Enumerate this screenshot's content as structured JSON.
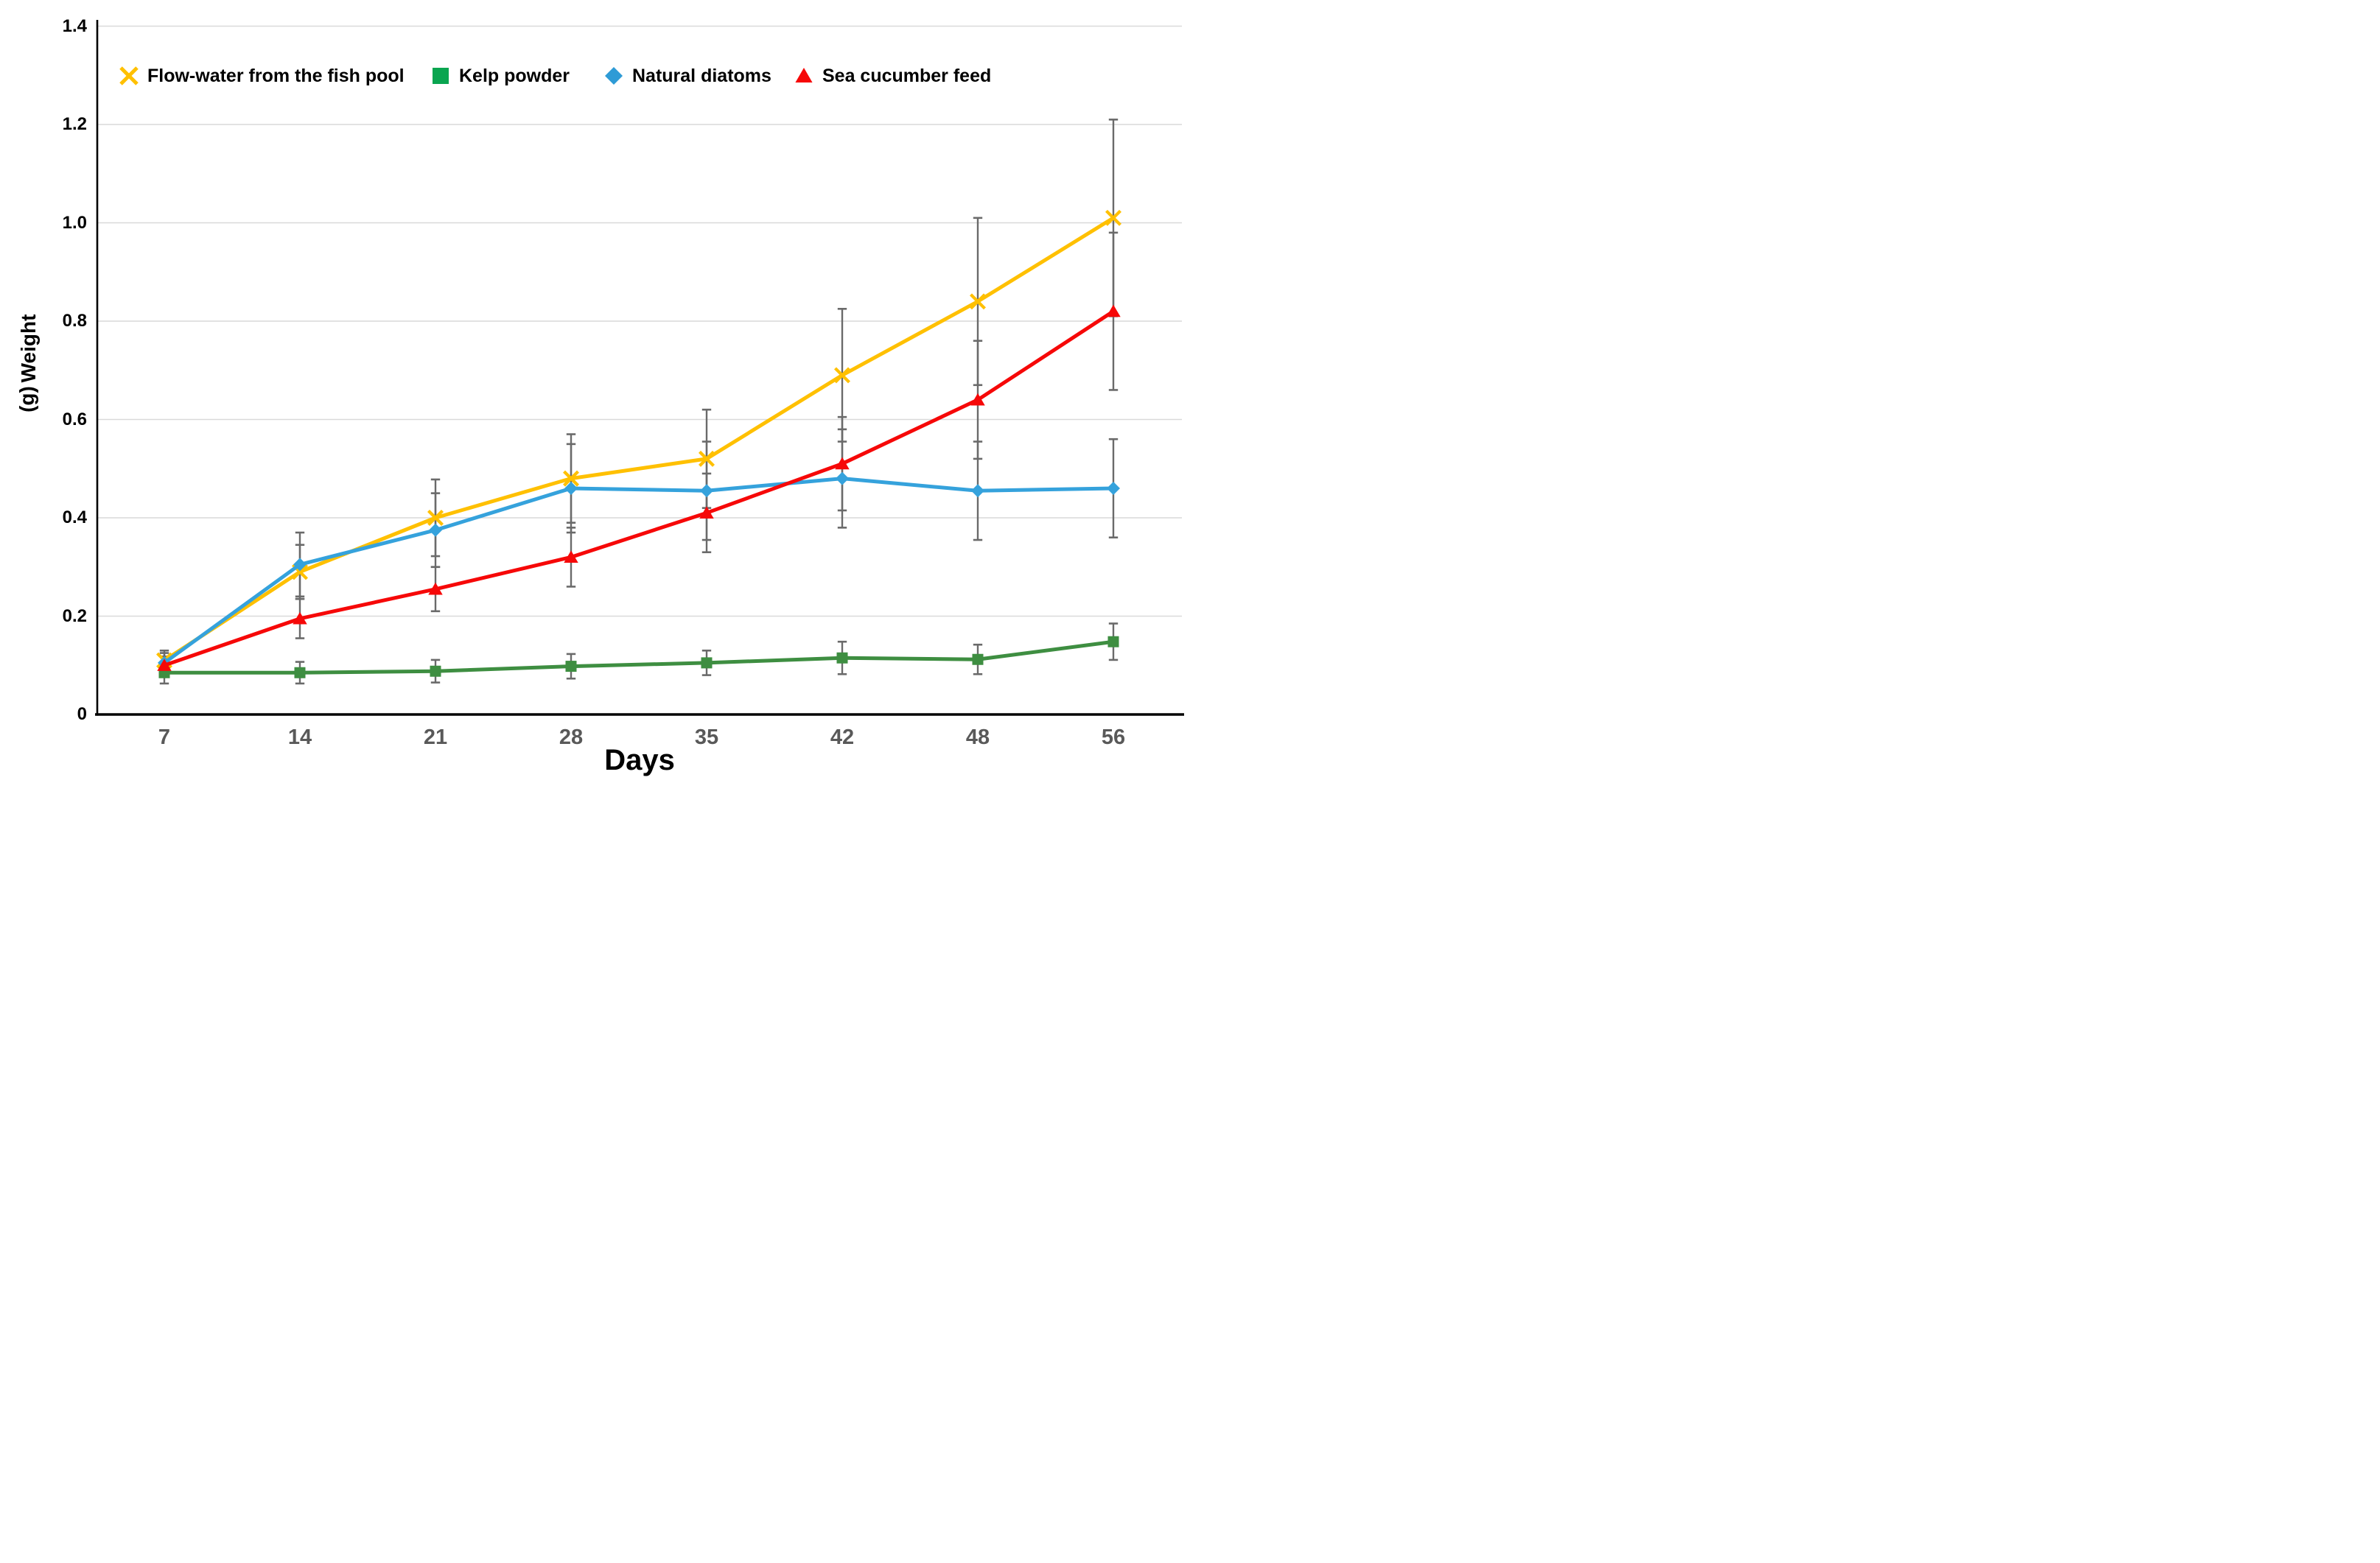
{
  "chart_data": {
    "type": "line",
    "title": "",
    "xlabel": "Days",
    "ylabel": "Weight (g)",
    "ylabel_line1": "Weight",
    "ylabel_line2": "(g)",
    "categories": [
      "7",
      "14",
      "21",
      "28",
      "35",
      "42",
      "48",
      "56"
    ],
    "yticks": [
      "0",
      "0.2",
      "0.4",
      "0.6",
      "0.8",
      "1.0",
      "1.2",
      "1.4"
    ],
    "ytick_values": [
      0,
      0.2,
      0.4,
      0.6,
      0.8,
      1.0,
      1.2,
      1.4
    ],
    "ylim": [
      0,
      1.4
    ],
    "grid": true,
    "legend_position": "top-inside",
    "error_bars": true,
    "colors": {
      "gridline": "#d9d9d9",
      "axis": "#000000",
      "error_bar": "#6a6a6a",
      "xtick_label": "#595959",
      "ytick_label": "#000000"
    },
    "series": [
      {
        "id": "flow-water",
        "name": "Flow-water from the fish pool",
        "marker": "x",
        "color": "#ffc000",
        "legend_color": "#ffc000",
        "values": [
          0.11,
          0.29,
          0.4,
          0.48,
          0.52,
          0.69,
          0.84,
          1.01
        ],
        "errors": [
          0.02,
          0.055,
          0.078,
          0.09,
          0.1,
          0.135,
          0.17,
          0.2
        ]
      },
      {
        "id": "kelp-powder",
        "name": "Kelp powder",
        "marker": "square",
        "color": "#3e8e41",
        "legend_color": "#0aa550",
        "values": [
          0.085,
          0.085,
          0.088,
          0.098,
          0.105,
          0.115,
          0.112,
          0.148
        ],
        "errors": [
          0.022,
          0.022,
          0.023,
          0.025,
          0.025,
          0.033,
          0.03,
          0.037
        ]
      },
      {
        "id": "natural-diatoms",
        "name": "Natural diatoms",
        "marker": "diamond",
        "color": "#35a2dc",
        "legend_color": "#2e9bd6",
        "values": [
          0.105,
          0.305,
          0.375,
          0.46,
          0.455,
          0.48,
          0.455,
          0.46
        ],
        "errors": [
          0.02,
          0.065,
          0.075,
          0.09,
          0.1,
          0.1,
          0.1,
          0.1
        ]
      },
      {
        "id": "sea-cucumber-feed",
        "name": "Sea cucumber feed",
        "marker": "triangle",
        "color": "#f60808",
        "legend_color": "#f60808",
        "values": [
          0.1,
          0.195,
          0.255,
          0.32,
          0.41,
          0.51,
          0.64,
          0.82
        ],
        "errors": [
          0.018,
          0.04,
          0.045,
          0.06,
          0.08,
          0.095,
          0.12,
          0.16
        ]
      }
    ]
  }
}
